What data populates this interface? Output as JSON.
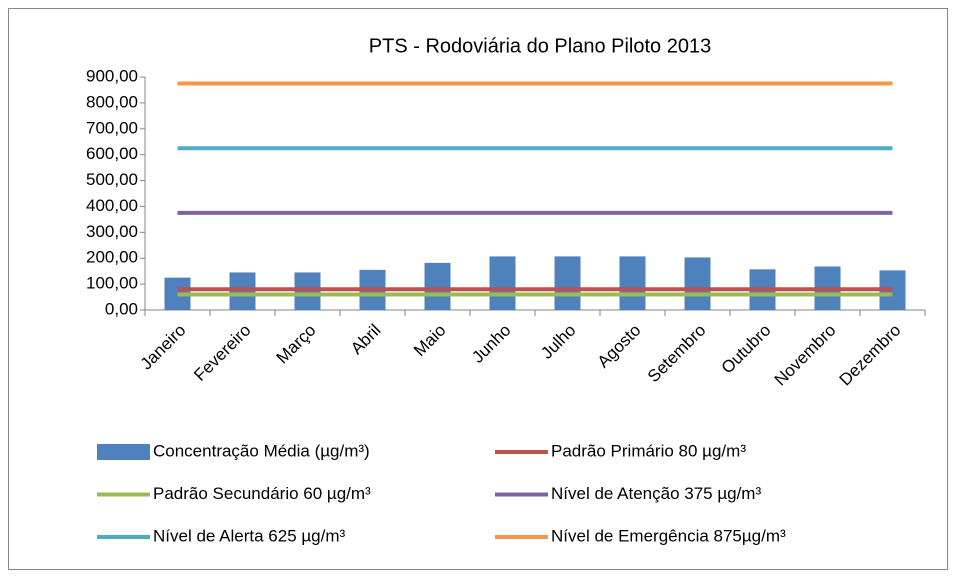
{
  "chart_data": {
    "type": "bar",
    "title": "PTS - Rodoviária do Plano Piloto 2013",
    "categories": [
      "Janeiro",
      "Fevereiro",
      "Março",
      "Abril",
      "Maio",
      "Junho",
      "Julho",
      "Agosto",
      "Setembro",
      "Outubro",
      "Novembro",
      "Dezembro"
    ],
    "series": [
      {
        "name": "Concentração Média  (µg/m³)",
        "type": "bar",
        "color": "#4f81bd",
        "values": [
          125,
          145,
          145,
          155,
          182,
          207,
          207,
          207,
          203,
          157,
          168,
          153
        ]
      },
      {
        "name": "Padrão Primário 80 µg/m³",
        "type": "line",
        "color": "#c0504d",
        "values": [
          80,
          80,
          80,
          80,
          80,
          80,
          80,
          80,
          80,
          80,
          80,
          80
        ]
      },
      {
        "name": "Padrão Secundário  60 µg/m³",
        "type": "line",
        "color": "#9bbb59",
        "values": [
          60,
          60,
          60,
          60,
          60,
          60,
          60,
          60,
          60,
          60,
          60,
          60
        ]
      },
      {
        "name": "Nível de Atenção 375 µg/m³",
        "type": "line",
        "color": "#8064a2",
        "values": [
          375,
          375,
          375,
          375,
          375,
          375,
          375,
          375,
          375,
          375,
          375,
          375
        ]
      },
      {
        "name": "Nível de Alerta 625 µg/m³",
        "type": "line",
        "color": "#4bacc6",
        "values": [
          625,
          625,
          625,
          625,
          625,
          625,
          625,
          625,
          625,
          625,
          625,
          625
        ]
      },
      {
        "name": "Nível de Emergência 875µg/m³",
        "type": "line",
        "color": "#f79646",
        "values": [
          875,
          875,
          875,
          875,
          875,
          875,
          875,
          875,
          875,
          875,
          875,
          875
        ]
      }
    ],
    "ylim": [
      0,
      900
    ],
    "yticks": [
      {
        "value": 0,
        "label": "0,00"
      },
      {
        "value": 100,
        "label": "100,00"
      },
      {
        "value": 200,
        "label": "200,00"
      },
      {
        "value": 300,
        "label": "300,00"
      },
      {
        "value": 400,
        "label": "400,00"
      },
      {
        "value": 500,
        "label": "500,00"
      },
      {
        "value": 600,
        "label": "600,00"
      },
      {
        "value": 700,
        "label": "700,00"
      },
      {
        "value": 800,
        "label": "800,00"
      },
      {
        "value": 900,
        "label": "900,00"
      }
    ],
    "legend": "bottom"
  }
}
